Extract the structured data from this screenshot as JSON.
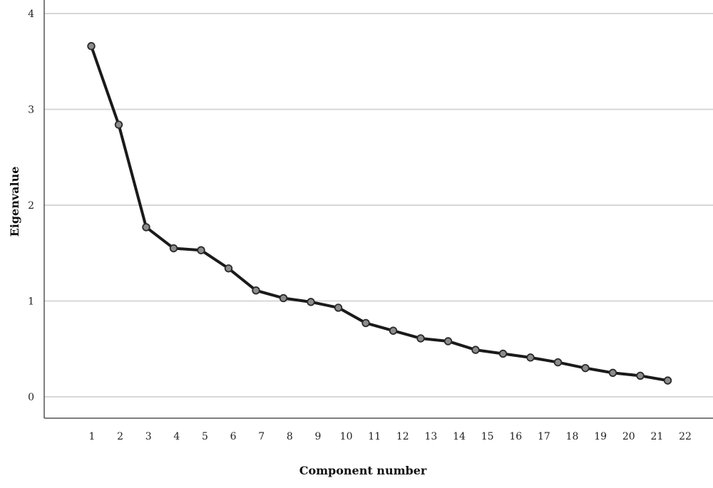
{
  "chart_data": {
    "type": "line",
    "xlabel": "Component number",
    "ylabel": "Eigenvalue",
    "x": [
      1,
      2,
      3,
      4,
      5,
      6,
      7,
      8,
      9,
      10,
      11,
      12,
      13,
      14,
      15,
      16,
      17,
      18,
      19,
      20,
      21,
      22
    ],
    "x_tick_labels": [
      "1",
      "2",
      "3",
      "4",
      "5",
      "6",
      "7",
      "8",
      "9",
      "10",
      "11",
      "12",
      "13",
      "14",
      "15",
      "16",
      "17",
      "18",
      "19",
      "20",
      "21",
      "22"
    ],
    "y_ticks": [
      0,
      1,
      2,
      3,
      4
    ],
    "y_tick_labels": [
      "0",
      "1",
      "2",
      "3",
      "4"
    ],
    "ylim": [
      -0.2,
      4.1
    ],
    "series": [
      {
        "values": [
          3.66,
          2.84,
          1.77,
          1.55,
          1.53,
          1.34,
          1.11,
          1.03,
          0.99,
          0.93,
          0.77,
          0.69,
          0.61,
          0.58,
          0.49,
          0.45,
          0.41,
          0.36,
          0.3,
          0.25,
          0.22,
          0.17
        ]
      }
    ],
    "grid": true,
    "colors": {
      "line": "#1a1a1a",
      "marker_fill": "#8c8c8c",
      "marker_stroke": "#2a2a2a",
      "grid": "#d7d7d7"
    }
  }
}
